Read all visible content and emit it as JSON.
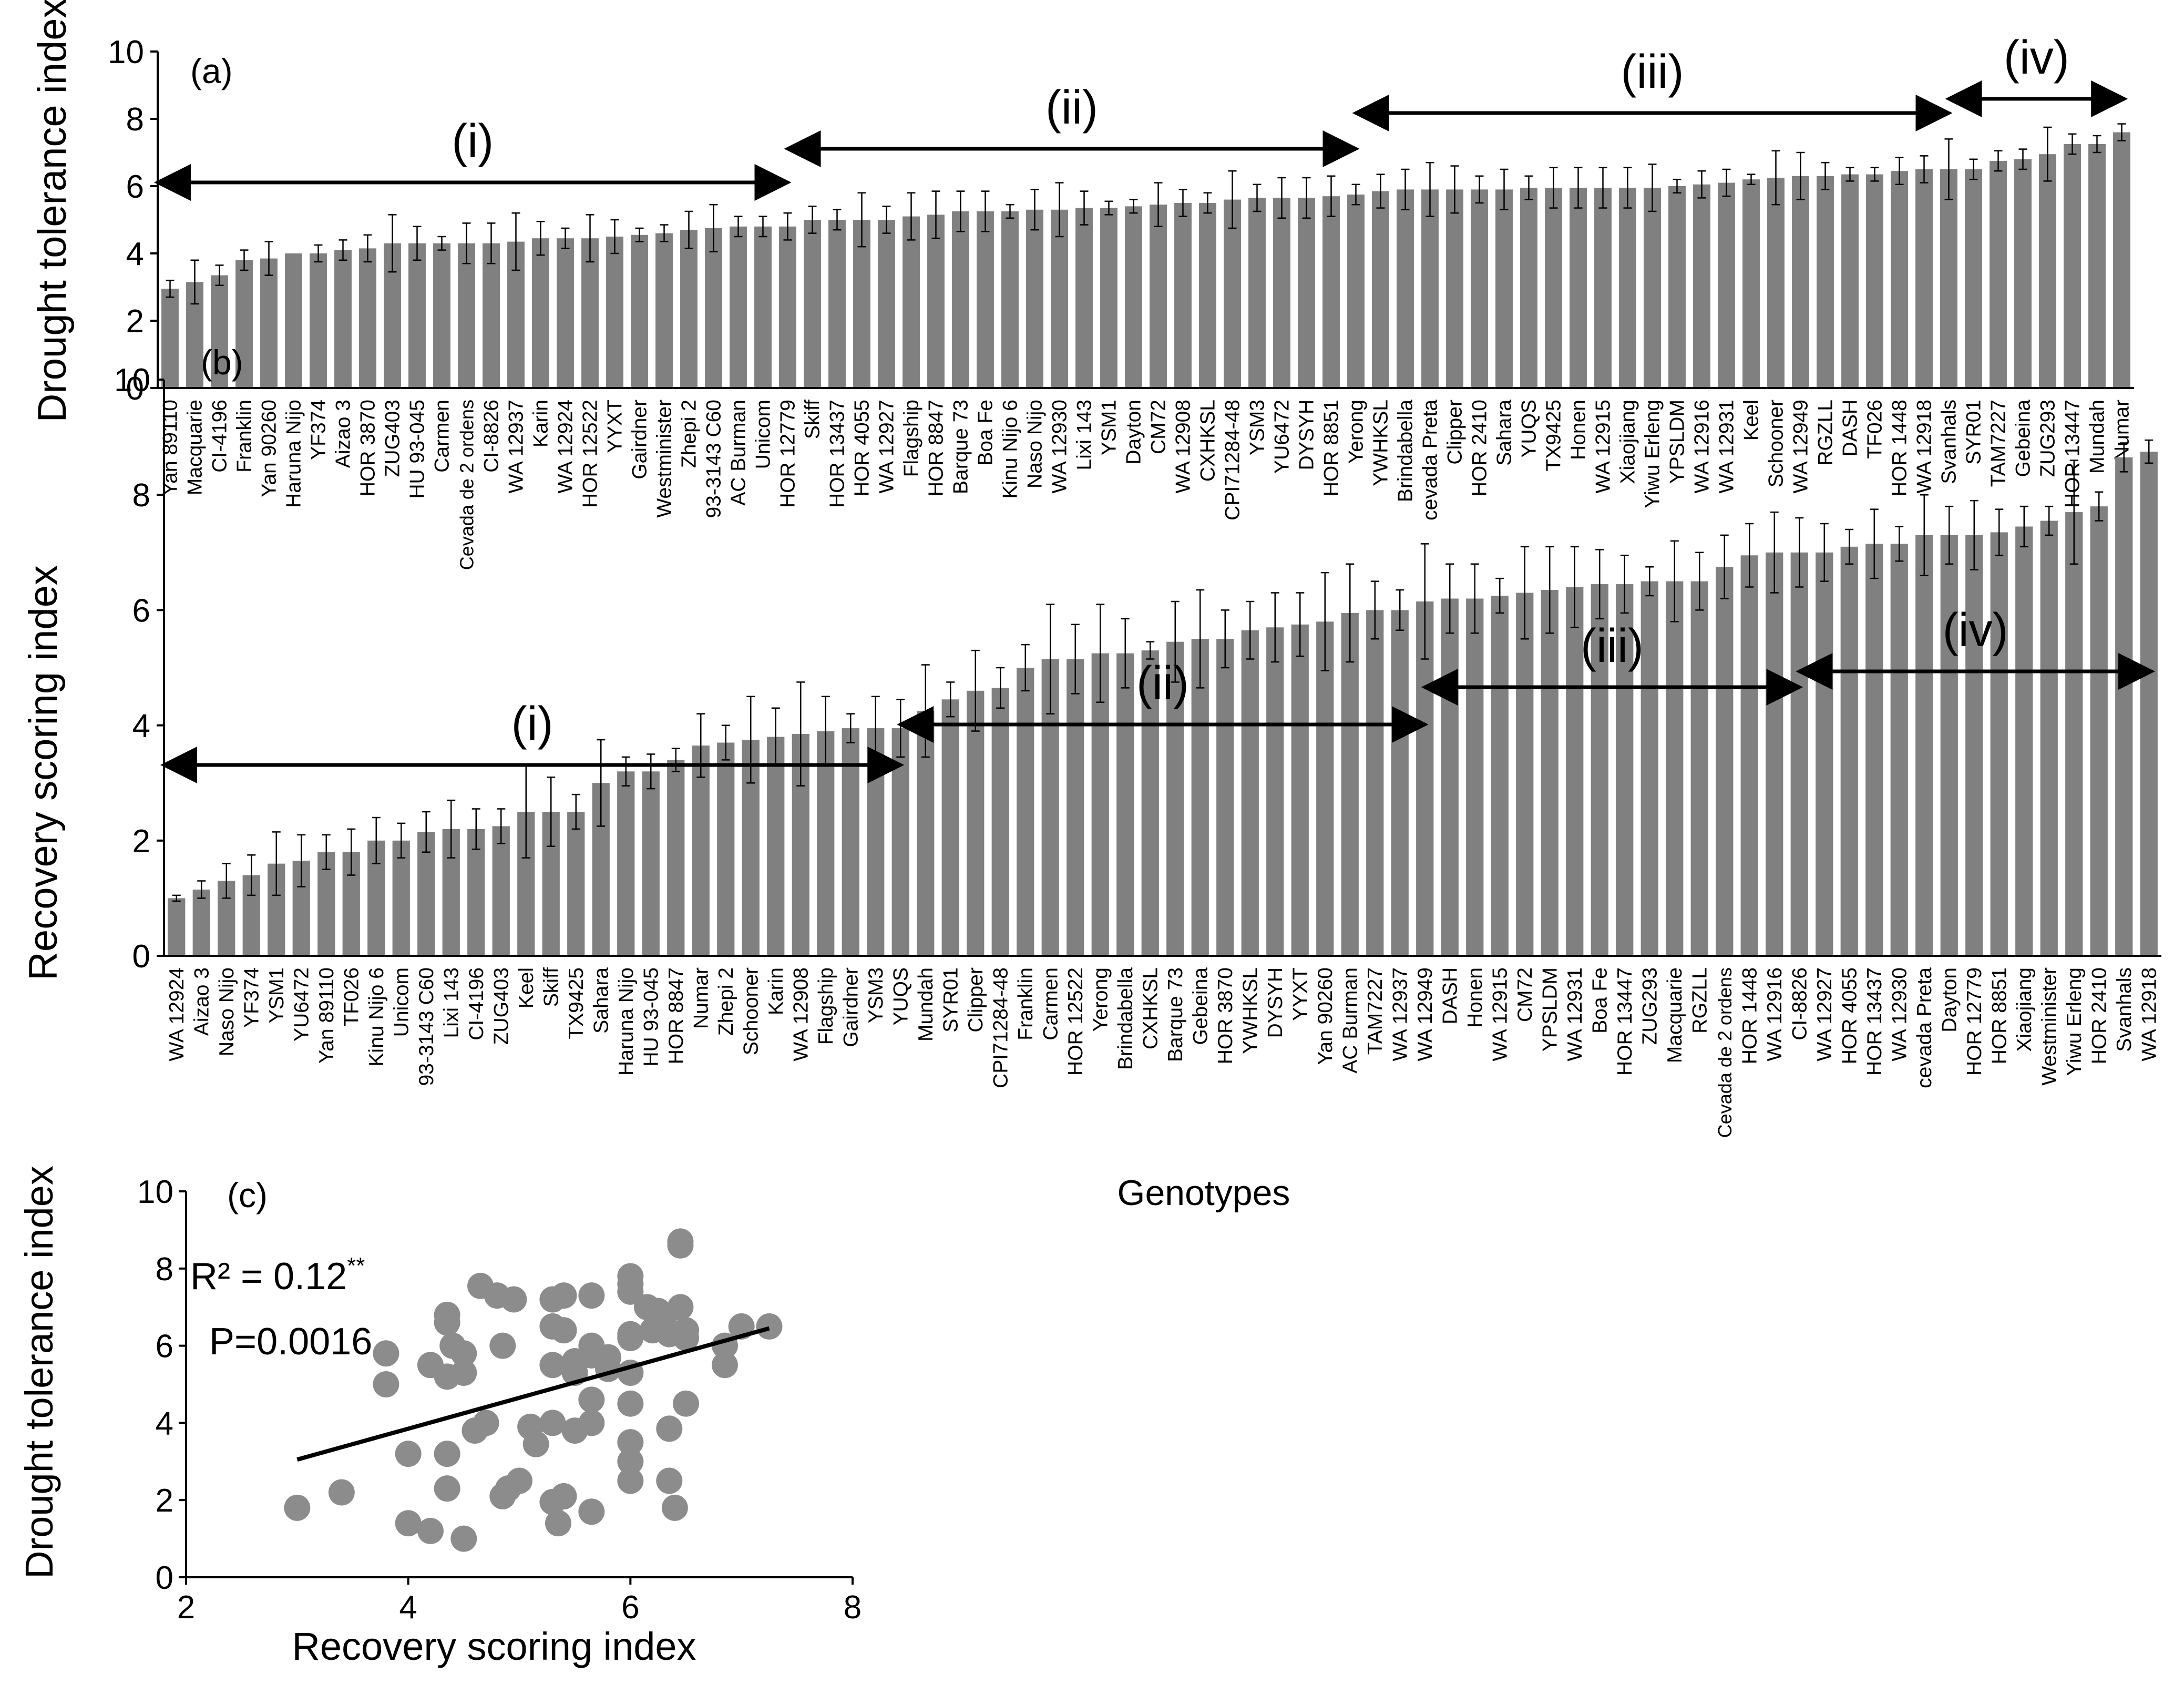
{
  "chart_data": [
    {
      "panel_label": "(a)",
      "type": "bar",
      "ylabel": "Drought tolerance index",
      "ylim": [
        0,
        10
      ],
      "yticks": [
        0,
        2,
        4,
        6,
        8,
        10
      ],
      "bar_color": "#808080",
      "error_bars": true,
      "groups": [
        {
          "label": "(i)",
          "from": "Yan 89110",
          "to": "HOR 12779"
        },
        {
          "label": "(ii)",
          "from": "HOR 12779",
          "to": "Yerong"
        },
        {
          "label": "(iii)",
          "from": "Yerong",
          "to": "Svanhals"
        },
        {
          "label": "(iv)",
          "from": "Svanhals",
          "to": "Numar"
        }
      ],
      "categories": [
        "Yan 89110",
        "Macquarie",
        "CI-4196",
        "Franklin",
        "Yan 90260",
        "Haruna Nijo",
        "YF374",
        "Aizao 3",
        "HOR 3870",
        "ZUG403",
        "HU 93-045",
        "Carmen",
        "Cevada de 2 ordens",
        "CI-8826",
        "WA 12937",
        "Karin",
        "WA 12924",
        "HOR 12522",
        "YYXT",
        "Gairdner",
        "Westminister",
        "Zhepi 2",
        "93-3143 C60",
        "AC Burman",
        "Unicom",
        "HOR 12779",
        "Skiff",
        "HOR 13437",
        "HOR 4055",
        "WA 12927",
        "Flagship",
        "HOR 8847",
        "Barque 73",
        "Boa Fe",
        "Kinu Nijo 6",
        "Naso Nijo",
        "WA 12930",
        "Lixi 143",
        "YSM1",
        "Dayton",
        "CM72",
        "WA 12908",
        "CXHKSL",
        "CPI71284-48",
        "YSM3",
        "YU6472",
        "DYSYH",
        "HOR 8851",
        "Yerong",
        "YWHKSL",
        "Brindabella",
        "cevada Preta",
        "Clipper",
        "HOR 2410",
        "Sahara",
        "YUQS",
        "TX9425",
        "Honen",
        "WA 12915",
        "Xiaojiang",
        "Yiwu Erleng",
        "YPSLDM",
        "WA 12916",
        "WA 12931",
        "Keel",
        "Schooner",
        "WA 12949",
        "RGZLL",
        "DASH",
        "TF026",
        "HOR 1448",
        "WA 12918",
        "Svanhals",
        "SYR01",
        "TAM7227",
        "Gebeina",
        "ZUG293",
        "HOR 13447",
        "Mundah",
        "Numar"
      ],
      "values": [
        2.95,
        3.15,
        3.35,
        3.8,
        3.85,
        4.0,
        4.0,
        4.1,
        4.15,
        4.3,
        4.3,
        4.3,
        4.3,
        4.3,
        4.35,
        4.45,
        4.45,
        4.45,
        4.5,
        4.55,
        4.6,
        4.7,
        4.75,
        4.8,
        4.8,
        4.8,
        5.0,
        5.0,
        5.0,
        5.0,
        5.1,
        5.15,
        5.25,
        5.25,
        5.25,
        5.3,
        5.3,
        5.35,
        5.35,
        5.4,
        5.45,
        5.5,
        5.5,
        5.6,
        5.65,
        5.65,
        5.65,
        5.7,
        5.75,
        5.85,
        5.9,
        5.9,
        5.9,
        5.9,
        5.9,
        5.95,
        5.95,
        5.95,
        5.95,
        5.95,
        5.95,
        6.0,
        6.05,
        6.1,
        6.2,
        6.25,
        6.3,
        6.3,
        6.35,
        6.35,
        6.45,
        6.5,
        6.5,
        6.5,
        6.75,
        6.8,
        6.95,
        7.25,
        7.25,
        7.6
      ],
      "errors": [
        0.25,
        0.65,
        0.3,
        0.3,
        0.5,
        0.0,
        0.25,
        0.3,
        0.4,
        0.85,
        0.5,
        0.2,
        0.6,
        0.6,
        0.85,
        0.5,
        0.3,
        0.7,
        0.5,
        0.2,
        0.25,
        0.55,
        0.7,
        0.3,
        0.3,
        0.4,
        0.4,
        0.3,
        0.8,
        0.4,
        0.7,
        0.7,
        0.6,
        0.6,
        0.2,
        0.6,
        0.8,
        0.5,
        0.2,
        0.2,
        0.65,
        0.4,
        0.3,
        0.85,
        0.4,
        0.6,
        0.6,
        0.6,
        0.3,
        0.5,
        0.6,
        0.8,
        0.7,
        0.4,
        0.6,
        0.35,
        0.6,
        0.6,
        0.6,
        0.6,
        0.7,
        0.2,
        0.4,
        0.4,
        0.15,
        0.8,
        0.7,
        0.4,
        0.2,
        0.2,
        0.4,
        0.4,
        0.9,
        0.3,
        0.3,
        0.3,
        0.8,
        0.3,
        0.25,
        0.25
      ]
    },
    {
      "panel_label": "(b)",
      "type": "bar",
      "ylabel": "Recovery scoring index",
      "xlabel": "Genotypes",
      "ylim": [
        0,
        10
      ],
      "yticks": [
        0,
        2,
        4,
        6,
        8,
        10
      ],
      "bar_color": "#808080",
      "error_bars": true,
      "groups": [
        {
          "label": "(i)",
          "from": "WA 12924",
          "to": "YUQS"
        },
        {
          "label": "(ii)",
          "from": "Mundah",
          "to": "WA 12949"
        },
        {
          "label": "(iii)",
          "from": "WA 12949",
          "to": "CI-8826"
        },
        {
          "label": "(iv)",
          "from": "CI-8826",
          "to": "WA 12918"
        }
      ],
      "categories": [
        "WA 12924",
        "Aizao 3",
        "Naso Nijo",
        "YF374",
        "YSM1",
        "YU6472",
        "Yan 89110",
        "TF026",
        "Kinu Nijo 6",
        "Unicom",
        "93-3143 C60",
        "Lixi 143",
        "CI-4196",
        "ZUG403",
        "Keel",
        "Skiff",
        "TX9425",
        "Sahara",
        "Haruna Nijo",
        "HU 93-045",
        "HOR 8847",
        "Numar",
        "Zhepi 2",
        "Schooner",
        "Karin",
        "WA 12908",
        "Flagship",
        "Gairdner",
        "YSM3",
        "YUQS",
        "Mundah",
        "SYR01",
        "Clipper",
        "CPI71284-48",
        "Franklin",
        "Carmen",
        "HOR 12522",
        "Yerong",
        "Brindabella",
        "CXHKSL",
        "Barque 73",
        "Gebeina",
        "HOR 3870",
        "YWHKSL",
        "DYSYH",
        "YYXT",
        "Yan 90260",
        "AC Burman",
        "TAM7227",
        "WA 12937",
        "WA 12949",
        "DASH",
        "Honen",
        "WA 12915",
        "CM72",
        "YPSLDM",
        "WA 12931",
        "Boa Fe",
        "HOR 13447",
        "ZUG293",
        "Macquarie",
        "RGZLL",
        "Cevada de 2 ordens",
        "HOR 1448",
        "WA 12916",
        "CI-8826",
        "WA 12927",
        "HOR 4055",
        "HOR 13437",
        "WA 12930",
        "cevada Preta",
        "Dayton",
        "HOR 12779",
        "HOR 8851",
        "Xiaojiang",
        "Westminister",
        "Yiwu Erleng",
        "HOR 2410",
        "Svanhals",
        "WA 12918"
      ],
      "values": [
        1.0,
        1.15,
        1.3,
        1.4,
        1.6,
        1.65,
        1.8,
        1.8,
        2.0,
        2.0,
        2.15,
        2.2,
        2.2,
        2.25,
        2.5,
        2.5,
        2.5,
        3.0,
        3.2,
        3.2,
        3.4,
        3.65,
        3.7,
        3.75,
        3.8,
        3.85,
        3.9,
        3.95,
        3.95,
        3.95,
        4.25,
        4.45,
        4.6,
        4.65,
        5.0,
        5.15,
        5.15,
        5.25,
        5.25,
        5.3,
        5.45,
        5.5,
        5.5,
        5.65,
        5.7,
        5.75,
        5.8,
        5.95,
        6.0,
        6.0,
        6.15,
        6.2,
        6.2,
        6.25,
        6.3,
        6.35,
        6.4,
        6.45,
        6.45,
        6.5,
        6.5,
        6.5,
        6.75,
        6.95,
        7.0,
        7.0,
        7.0,
        7.1,
        7.15,
        7.15,
        7.3,
        7.3,
        7.3,
        7.35,
        7.45,
        7.55,
        7.7,
        7.8,
        8.65,
        8.75
      ],
      "errors": [
        0.05,
        0.15,
        0.3,
        0.35,
        0.55,
        0.45,
        0.3,
        0.4,
        0.4,
        0.3,
        0.35,
        0.5,
        0.35,
        0.3,
        0.8,
        0.6,
        0.3,
        0.75,
        0.25,
        0.3,
        0.2,
        0.55,
        0.3,
        0.75,
        0.5,
        0.9,
        0.6,
        0.25,
        0.55,
        0.5,
        0.8,
        0.3,
        0.7,
        0.35,
        0.4,
        0.95,
        0.6,
        0.85,
        0.6,
        0.15,
        0.7,
        0.85,
        0.5,
        0.5,
        0.6,
        0.55,
        0.85,
        0.85,
        0.5,
        0.35,
        1.0,
        0.6,
        0.6,
        0.3,
        0.8,
        0.75,
        0.7,
        0.6,
        0.5,
        0.25,
        0.7,
        0.5,
        0.55,
        0.55,
        0.7,
        0.6,
        0.5,
        0.3,
        0.6,
        0.3,
        0.7,
        0.5,
        0.6,
        0.4,
        0.35,
        0.25,
        0.9,
        0.25,
        0.25,
        0.2
      ]
    },
    {
      "panel_label": "(c)",
      "type": "scatter",
      "xlabel": "Recovery scoring index",
      "ylabel": "Drought tolerance index",
      "xlim": [
        2,
        8
      ],
      "ylim": [
        0,
        10
      ],
      "xticks": [
        2,
        4,
        6,
        8
      ],
      "yticks": [
        0,
        2,
        4,
        6,
        8,
        10
      ],
      "marker_color": "#8c8c8c",
      "annotations": {
        "r2_text": "R² = 0.12",
        "r2_sup": "**",
        "p_text": "P=0.0016"
      },
      "trendline": {
        "x": [
          3.0,
          7.25
        ],
        "y": [
          3.05,
          6.45
        ]
      },
      "points": [
        [
          3.0,
          1.8
        ],
        [
          3.4,
          2.2
        ],
        [
          3.8,
          5.8
        ],
        [
          3.8,
          5.0
        ],
        [
          4.0,
          3.2
        ],
        [
          4.0,
          1.4
        ],
        [
          4.2,
          5.5
        ],
        [
          4.2,
          1.2
        ],
        [
          4.35,
          6.8
        ],
        [
          4.35,
          6.6
        ],
        [
          4.35,
          5.2
        ],
        [
          4.35,
          3.2
        ],
        [
          4.35,
          2.3
        ],
        [
          4.4,
          6.0
        ],
        [
          4.5,
          5.8
        ],
        [
          4.5,
          5.3
        ],
        [
          4.5,
          1.0
        ],
        [
          4.6,
          3.8
        ],
        [
          4.65,
          7.55
        ],
        [
          4.7,
          4.0
        ],
        [
          4.8,
          7.3
        ],
        [
          4.85,
          6.0
        ],
        [
          4.85,
          2.1
        ],
        [
          4.9,
          2.3
        ],
        [
          4.95,
          7.2
        ],
        [
          5.0,
          2.5
        ],
        [
          5.1,
          3.9
        ],
        [
          5.15,
          3.45
        ],
        [
          5.3,
          7.2
        ],
        [
          5.3,
          6.5
        ],
        [
          5.3,
          5.5
        ],
        [
          5.3,
          4.0
        ],
        [
          5.3,
          1.95
        ],
        [
          5.35,
          1.4
        ],
        [
          5.4,
          7.3
        ],
        [
          5.4,
          6.4
        ],
        [
          5.4,
          2.1
        ],
        [
          5.5,
          5.6
        ],
        [
          5.5,
          5.3
        ],
        [
          5.5,
          3.8
        ],
        [
          5.65,
          7.3
        ],
        [
          5.65,
          6.0
        ],
        [
          5.65,
          5.75
        ],
        [
          5.65,
          4.6
        ],
        [
          5.65,
          4.0
        ],
        [
          5.65,
          1.7
        ],
        [
          5.8,
          5.7
        ],
        [
          5.8,
          5.4
        ],
        [
          6.0,
          7.8
        ],
        [
          6.0,
          7.6
        ],
        [
          6.0,
          7.4
        ],
        [
          6.0,
          6.3
        ],
        [
          6.0,
          6.2
        ],
        [
          6.0,
          5.3
        ],
        [
          6.0,
          4.5
        ],
        [
          6.0,
          3.5
        ],
        [
          6.0,
          3.0
        ],
        [
          6.0,
          2.5
        ],
        [
          6.15,
          7.0
        ],
        [
          6.2,
          6.4
        ],
        [
          6.25,
          6.9
        ],
        [
          6.3,
          6.6
        ],
        [
          6.35,
          6.3
        ],
        [
          6.35,
          3.85
        ],
        [
          6.35,
          2.5
        ],
        [
          6.4,
          1.8
        ],
        [
          6.45,
          8.7
        ],
        [
          6.45,
          8.6
        ],
        [
          6.45,
          7.0
        ],
        [
          6.5,
          6.4
        ],
        [
          6.5,
          6.2
        ],
        [
          6.5,
          4.5
        ],
        [
          6.85,
          6.0
        ],
        [
          6.85,
          5.5
        ],
        [
          7.0,
          6.5
        ],
        [
          7.25,
          6.5
        ]
      ]
    }
  ]
}
